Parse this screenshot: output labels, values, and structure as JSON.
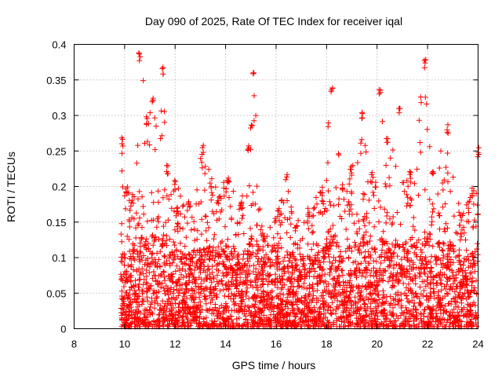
{
  "chart_data": {
    "type": "scatter",
    "title": "Day 090 of 2025, Rate Of TEC Index for receiver iqal",
    "xlabel": "GPS time / hours",
    "ylabel": "ROTI / TECUs",
    "xlim": [
      8,
      24
    ],
    "ylim": [
      0,
      0.4
    ],
    "xticks": [
      "8",
      "10",
      "12",
      "14",
      "16",
      "18",
      "20",
      "22",
      "24"
    ],
    "yticks": [
      "0",
      "0.05",
      "0.1",
      "0.15",
      "0.2",
      "0.25",
      "0.3",
      "0.35",
      "0.4"
    ],
    "grid": true,
    "marker": "+",
    "color": "#ff0000",
    "series": [
      {
        "name": "ROTI",
        "envelope": [
          {
            "x": 9.9,
            "peak": 0.27
          },
          {
            "x": 10.1,
            "peak": 0.2
          },
          {
            "x": 10.3,
            "peak": 0.19
          },
          {
            "x": 10.6,
            "peak": 0.39
          },
          {
            "x": 10.9,
            "peak": 0.3
          },
          {
            "x": 11.1,
            "peak": 0.33
          },
          {
            "x": 11.5,
            "peak": 0.37
          },
          {
            "x": 11.7,
            "peak": 0.23
          },
          {
            "x": 12.0,
            "peak": 0.21
          },
          {
            "x": 12.5,
            "peak": 0.18
          },
          {
            "x": 13.1,
            "peak": 0.26
          },
          {
            "x": 13.7,
            "peak": 0.19
          },
          {
            "x": 14.1,
            "peak": 0.22
          },
          {
            "x": 14.6,
            "peak": 0.18
          },
          {
            "x": 14.9,
            "peak": 0.26
          },
          {
            "x": 15.1,
            "peak": 0.37
          },
          {
            "x": 15.5,
            "peak": 0.13
          },
          {
            "x": 16.1,
            "peak": 0.17
          },
          {
            "x": 16.4,
            "peak": 0.22
          },
          {
            "x": 16.8,
            "peak": 0.15
          },
          {
            "x": 17.3,
            "peak": 0.17
          },
          {
            "x": 17.8,
            "peak": 0.2
          },
          {
            "x": 18.2,
            "peak": 0.34
          },
          {
            "x": 18.6,
            "peak": 0.21
          },
          {
            "x": 19.0,
            "peak": 0.23
          },
          {
            "x": 19.4,
            "peak": 0.31
          },
          {
            "x": 19.8,
            "peak": 0.22
          },
          {
            "x": 20.1,
            "peak": 0.34
          },
          {
            "x": 20.4,
            "peak": 0.27
          },
          {
            "x": 20.9,
            "peak": 0.31
          },
          {
            "x": 21.3,
            "peak": 0.22
          },
          {
            "x": 21.9,
            "peak": 0.38
          },
          {
            "x": 22.2,
            "peak": 0.23
          },
          {
            "x": 22.8,
            "peak": 0.29
          },
          {
            "x": 23.3,
            "peak": 0.16
          },
          {
            "x": 23.8,
            "peak": 0.2
          },
          {
            "x": 24.0,
            "peak": 0.26
          }
        ],
        "x_range": [
          9.85,
          24.0
        ],
        "typical_range": [
          0.0,
          0.1
        ]
      }
    ]
  }
}
